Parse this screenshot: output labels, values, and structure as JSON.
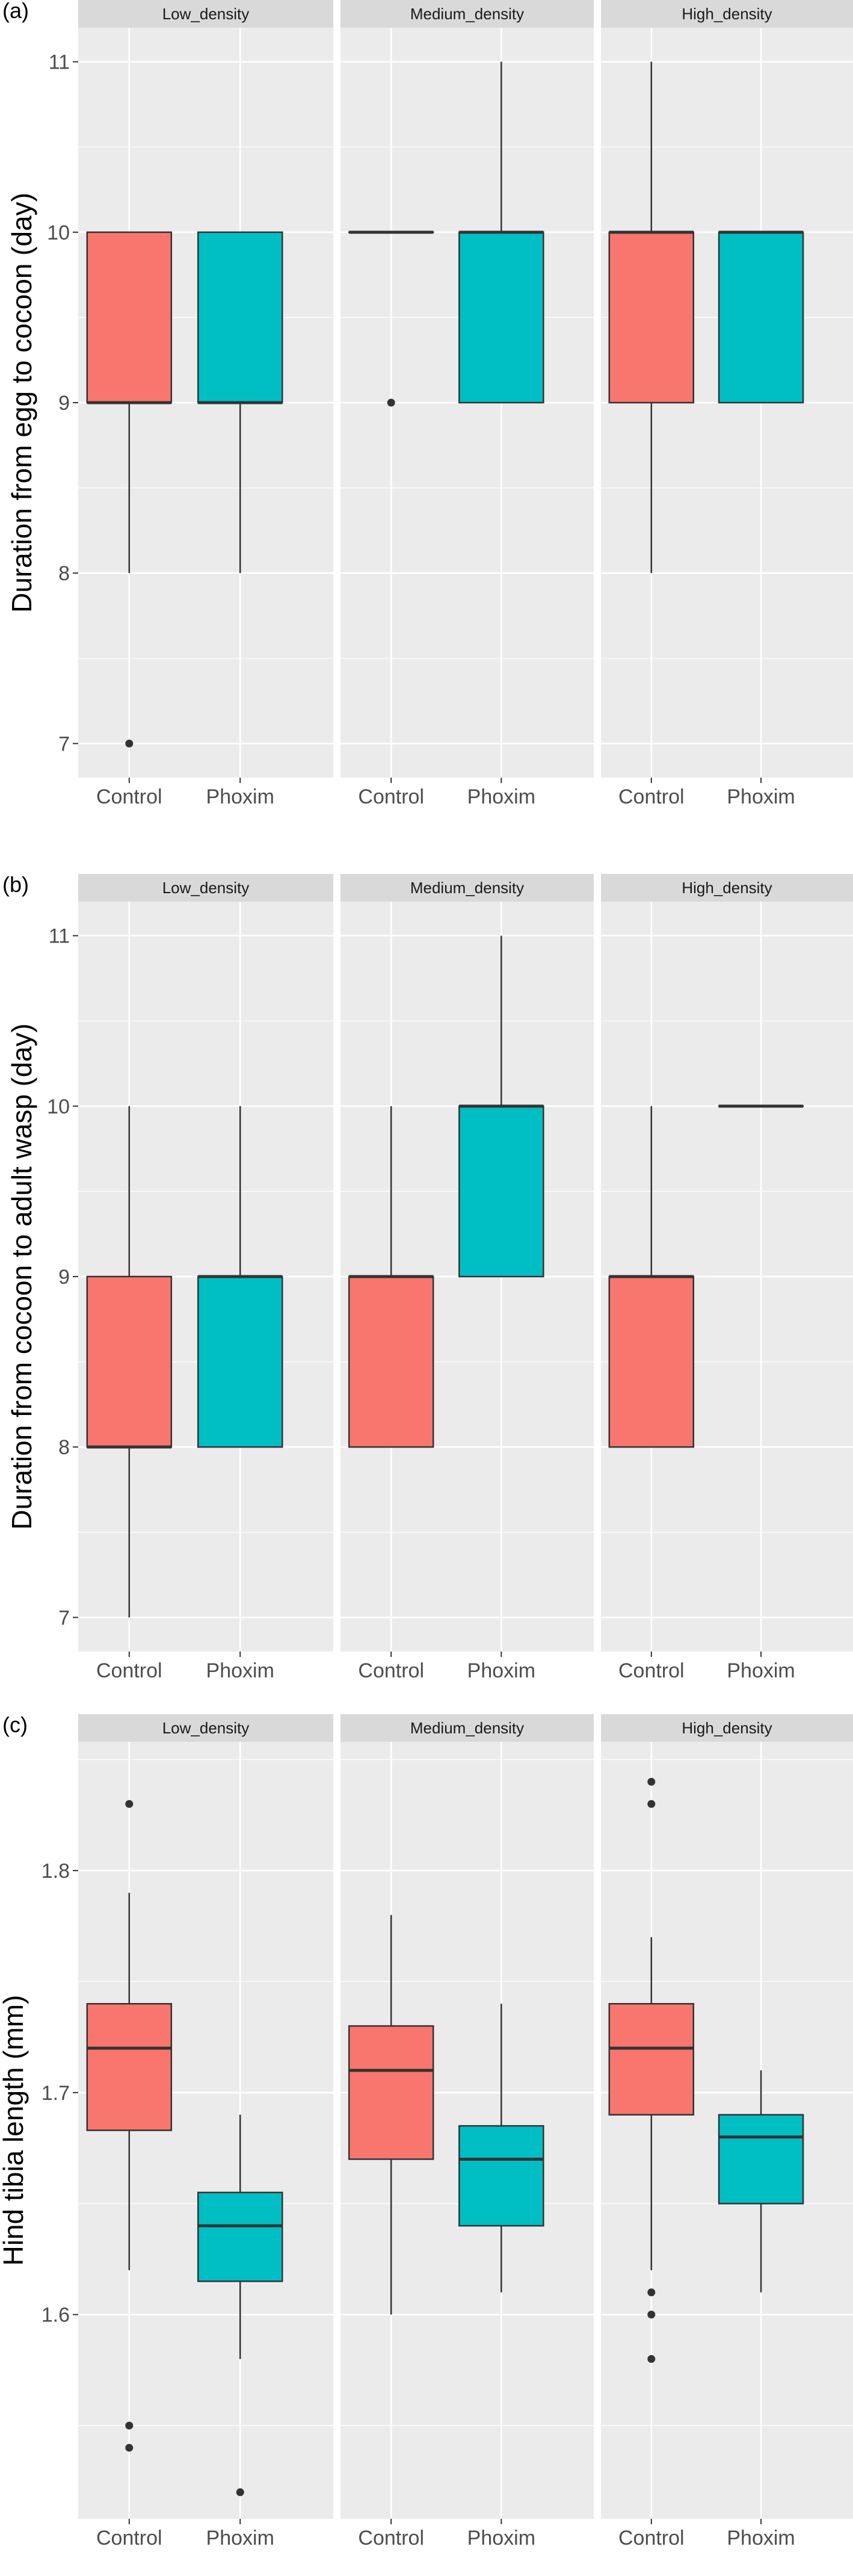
{
  "colors": {
    "Control": "#F8766D",
    "Phoxim": "#00BFC4",
    "panel_bg": "#EBEBEB",
    "strip_bg": "#D9D9D9",
    "grid": "#FFFFFF"
  },
  "chart_data": [
    {
      "type": "boxplot",
      "panel_label": "(a)",
      "ylabel": "Duration from egg to cocoon (day)",
      "ylim": [
        6.8,
        11.2
      ],
      "yticks": [
        7,
        8,
        9,
        10,
        11
      ],
      "ytick_labels": [
        "7",
        "8",
        "9",
        "10",
        "11"
      ],
      "facets": [
        "Low_density",
        "Medium_density",
        "High_density"
      ],
      "categories": [
        "Control",
        "Phoxim"
      ],
      "grid": true,
      "boxes": [
        {
          "facet": "Low_density",
          "group": "Control",
          "min": 8,
          "q1": 9,
          "median": 9,
          "q3": 10,
          "max": 10,
          "outliers": [
            7
          ]
        },
        {
          "facet": "Low_density",
          "group": "Phoxim",
          "min": 8,
          "q1": 9,
          "median": 9,
          "q3": 10,
          "max": 10,
          "outliers": []
        },
        {
          "facet": "Medium_density",
          "group": "Control",
          "min": 10,
          "q1": 10,
          "median": 10,
          "q3": 10,
          "max": 10,
          "outliers": [
            9
          ]
        },
        {
          "facet": "Medium_density",
          "group": "Phoxim",
          "min": 9,
          "q1": 9,
          "median": 10,
          "q3": 10,
          "max": 11,
          "outliers": []
        },
        {
          "facet": "High_density",
          "group": "Control",
          "min": 8,
          "q1": 9,
          "median": 10,
          "q3": 10,
          "max": 11,
          "outliers": []
        },
        {
          "facet": "High_density",
          "group": "Phoxim",
          "min": 9,
          "q1": 9,
          "median": 10,
          "q3": 10,
          "max": 10,
          "outliers": []
        }
      ]
    },
    {
      "type": "boxplot",
      "panel_label": "(b)",
      "ylabel": "Duration from cocoon to adult wasp (day)",
      "ylim": [
        6.8,
        11.2
      ],
      "yticks": [
        7,
        8,
        9,
        10,
        11
      ],
      "ytick_labels": [
        "7",
        "8",
        "9",
        "10",
        "11"
      ],
      "facets": [
        "Low_density",
        "Medium_density",
        "High_density"
      ],
      "categories": [
        "Control",
        "Phoxim"
      ],
      "grid": true,
      "boxes": [
        {
          "facet": "Low_density",
          "group": "Control",
          "min": 7,
          "q1": 8,
          "median": 8,
          "q3": 9,
          "max": 10,
          "outliers": []
        },
        {
          "facet": "Low_density",
          "group": "Phoxim",
          "min": 8,
          "q1": 8,
          "median": 9,
          "q3": 9,
          "max": 10,
          "outliers": []
        },
        {
          "facet": "Medium_density",
          "group": "Control",
          "min": 8,
          "q1": 8,
          "median": 9,
          "q3": 9,
          "max": 10,
          "outliers": []
        },
        {
          "facet": "Medium_density",
          "group": "Phoxim",
          "min": 9,
          "q1": 9,
          "median": 10,
          "q3": 10,
          "max": 11,
          "outliers": []
        },
        {
          "facet": "High_density",
          "group": "Control",
          "min": 8,
          "q1": 8,
          "median": 9,
          "q3": 9,
          "max": 10,
          "outliers": []
        },
        {
          "facet": "High_density",
          "group": "Phoxim",
          "min": 10,
          "q1": 10,
          "median": 10,
          "q3": 10,
          "max": 10,
          "outliers": []
        }
      ]
    },
    {
      "type": "boxplot",
      "panel_label": "(c)",
      "ylabel": "Hind tibia length (mm)",
      "ylim": [
        1.508,
        1.858
      ],
      "yticks": [
        1.6,
        1.7,
        1.8
      ],
      "ytick_labels": [
        "1.6",
        "1.7",
        "1.8"
      ],
      "facets": [
        "Low_density",
        "Medium_density",
        "High_density"
      ],
      "categories": [
        "Control",
        "Phoxim"
      ],
      "grid": true,
      "boxes": [
        {
          "facet": "Low_density",
          "group": "Control",
          "min": 1.62,
          "q1": 1.683,
          "median": 1.72,
          "q3": 1.74,
          "max": 1.79,
          "outliers": [
            1.83,
            1.55,
            1.54
          ]
        },
        {
          "facet": "Low_density",
          "group": "Phoxim",
          "min": 1.58,
          "q1": 1.615,
          "median": 1.64,
          "q3": 1.655,
          "max": 1.69,
          "outliers": [
            1.52
          ]
        },
        {
          "facet": "Medium_density",
          "group": "Control",
          "min": 1.6,
          "q1": 1.67,
          "median": 1.71,
          "q3": 1.73,
          "max": 1.78,
          "outliers": []
        },
        {
          "facet": "Medium_density",
          "group": "Phoxim",
          "min": 1.61,
          "q1": 1.64,
          "median": 1.67,
          "q3": 1.685,
          "max": 1.74,
          "outliers": []
        },
        {
          "facet": "High_density",
          "group": "Control",
          "min": 1.62,
          "q1": 1.69,
          "median": 1.72,
          "q3": 1.74,
          "max": 1.77,
          "outliers": [
            1.84,
            1.83,
            1.61,
            1.6,
            1.58
          ]
        },
        {
          "facet": "High_density",
          "group": "Phoxim",
          "min": 1.61,
          "q1": 1.65,
          "median": 1.68,
          "q3": 1.69,
          "max": 1.71,
          "outliers": []
        }
      ]
    }
  ]
}
